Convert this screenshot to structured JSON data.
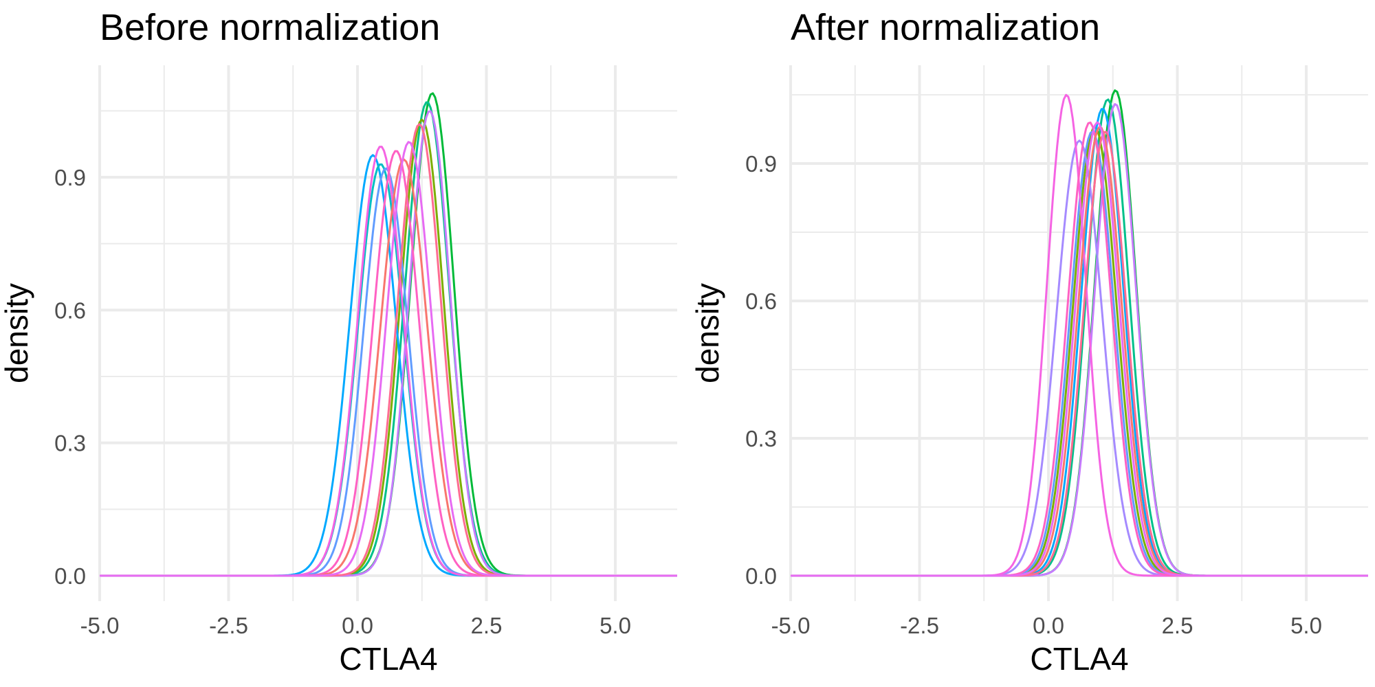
{
  "chart_data": [
    {
      "type": "line",
      "title": "Before normalization",
      "xlabel": "CTLA4",
      "ylabel": "density",
      "xlim": [
        -5.0,
        6.2
      ],
      "ylim": [
        0.0,
        1.1
      ],
      "xticks": [
        -5.0,
        -2.5,
        0.0,
        2.5,
        5.0
      ],
      "xtick_labels": [
        "-5.0",
        "-2.5",
        "0.0",
        "2.5",
        "5.0"
      ],
      "yticks": [
        0.0,
        0.3,
        0.6,
        0.9
      ],
      "ytick_labels": [
        "0.0",
        "0.3",
        "0.6",
        "0.9"
      ],
      "grid": true,
      "legend": "none",
      "series": [
        {
          "color": "#00BA38",
          "peak_x": 1.45,
          "peak_y": 1.09,
          "sd": 0.42
        },
        {
          "color": "#00C08B",
          "peak_x": 1.35,
          "peak_y": 1.07,
          "sd": 0.43
        },
        {
          "color": "#7CAE00",
          "peak_x": 1.25,
          "peak_y": 1.03,
          "sd": 0.42
        },
        {
          "color": "#00A9FF",
          "peak_x": 0.3,
          "peak_y": 0.95,
          "sd": 0.45
        },
        {
          "color": "#00BFC4",
          "peak_x": 0.45,
          "peak_y": 0.93,
          "sd": 0.44
        },
        {
          "color": "#619CFF",
          "peak_x": 0.55,
          "peak_y": 0.92,
          "sd": 0.43
        },
        {
          "color": "#C77CFF",
          "peak_x": 1.4,
          "peak_y": 1.05,
          "sd": 0.4
        },
        {
          "color": "#F564E3",
          "peak_x": 0.45,
          "peak_y": 0.97,
          "sd": 0.44
        },
        {
          "color": "#FF61C3",
          "peak_x": 0.75,
          "peak_y": 0.96,
          "sd": 0.44
        },
        {
          "color": "#F8766D",
          "peak_x": 0.9,
          "peak_y": 0.94,
          "sd": 0.45
        },
        {
          "color": "#FF6C91",
          "peak_x": 1.2,
          "peak_y": 1.02,
          "sd": 0.42
        },
        {
          "color": "#E76BF3",
          "peak_x": 1.0,
          "peak_y": 0.98,
          "sd": 0.43
        }
      ]
    },
    {
      "type": "line",
      "title": "After normalization",
      "xlabel": "CTLA4",
      "ylabel": "density",
      "xlim": [
        -5.0,
        6.2
      ],
      "ylim": [
        0.0,
        1.1
      ],
      "xticks": [
        -5.0,
        -2.5,
        0.0,
        2.5,
        5.0
      ],
      "xtick_labels": [
        "-5.0",
        "-2.5",
        "0.0",
        "2.5",
        "5.0"
      ],
      "yticks": [
        0.0,
        0.3,
        0.6,
        0.9
      ],
      "ytick_labels": [
        "0.0",
        "0.3",
        "0.6",
        "0.9"
      ],
      "grid": true,
      "legend": "none",
      "series": [
        {
          "color": "#00BA38",
          "peak_x": 1.3,
          "peak_y": 1.06,
          "sd": 0.4
        },
        {
          "color": "#00C08B",
          "peak_x": 1.15,
          "peak_y": 1.04,
          "sd": 0.41
        },
        {
          "color": "#7CAE00",
          "peak_x": 0.9,
          "peak_y": 0.98,
          "sd": 0.42
        },
        {
          "color": "#00A9FF",
          "peak_x": 1.05,
          "peak_y": 1.02,
          "sd": 0.41
        },
        {
          "color": "#619CFF",
          "peak_x": 0.85,
          "peak_y": 0.97,
          "sd": 0.42
        },
        {
          "color": "#C77CFF",
          "peak_x": 1.3,
          "peak_y": 1.03,
          "sd": 0.4
        },
        {
          "color": "#A58AFF",
          "peak_x": 0.6,
          "peak_y": 0.95,
          "sd": 0.44
        },
        {
          "color": "#F564E3",
          "peak_x": 0.35,
          "peak_y": 1.05,
          "sd": 0.38
        },
        {
          "color": "#FF61C3",
          "peak_x": 0.8,
          "peak_y": 0.99,
          "sd": 0.42
        },
        {
          "color": "#F8766D",
          "peak_x": 1.0,
          "peak_y": 0.98,
          "sd": 0.42
        },
        {
          "color": "#FF6C91",
          "peak_x": 1.1,
          "peak_y": 0.97,
          "sd": 0.41
        },
        {
          "color": "#E76BF3",
          "peak_x": 0.95,
          "peak_y": 0.99,
          "sd": 0.42
        }
      ]
    }
  ]
}
